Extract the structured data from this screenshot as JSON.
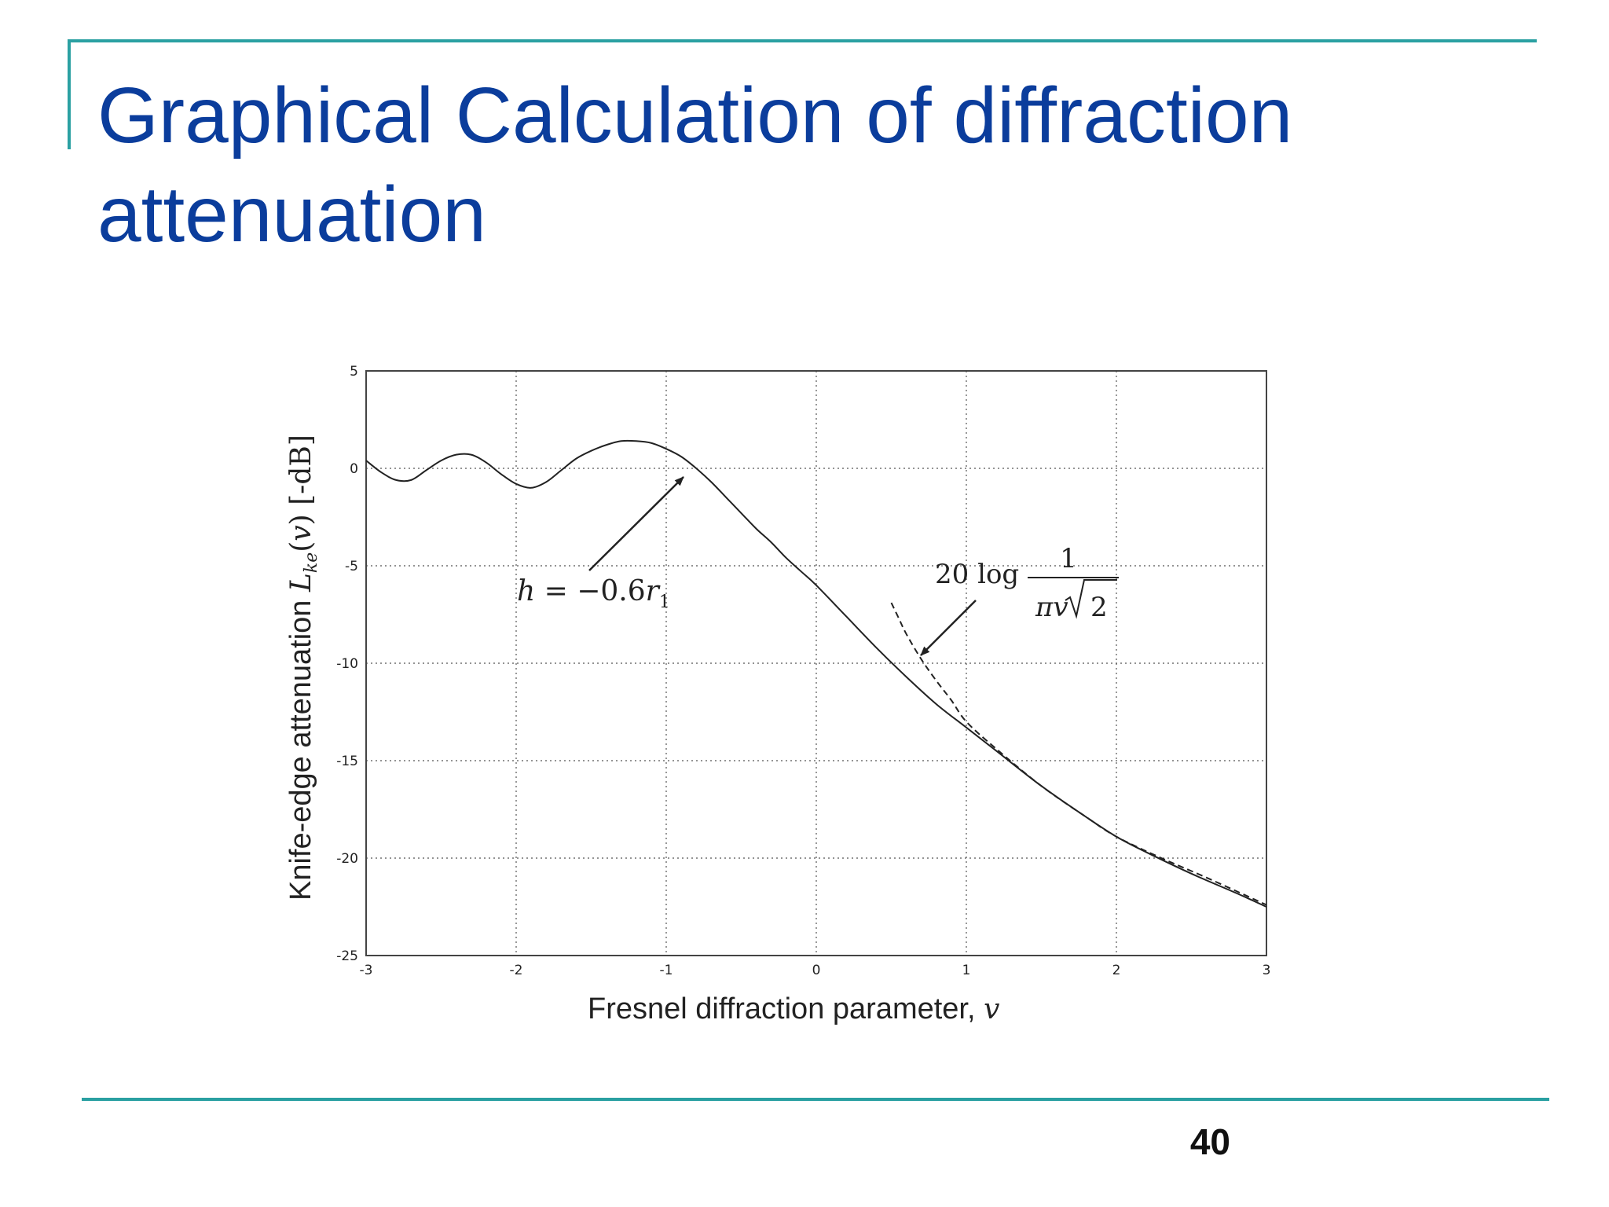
{
  "slide": {
    "title": "Graphical Calculation of diffraction attenuation",
    "page_number": "40"
  },
  "colors": {
    "title": "#0b3d9c",
    "rule": "#2aa0a2",
    "curve": "#222222",
    "grid": "#555555"
  },
  "chart_data": {
    "type": "line",
    "title": "",
    "xlabel": "Fresnel diffraction parameter, v",
    "ylabel": "Knife-edge attenuation L_ke(v) [-dB]",
    "xlim": [
      -3,
      3
    ],
    "ylim": [
      -25,
      5
    ],
    "xticks": [
      "-3",
      "-2",
      "-1",
      "0",
      "1",
      "2",
      "3"
    ],
    "yticks": [
      "5",
      "0",
      "-5",
      "-10",
      "-15",
      "-20",
      "-25"
    ],
    "grid": true,
    "series": [
      {
        "style": "solid",
        "x": [
          -3,
          -2.9,
          -2.8,
          -2.7,
          -2.6,
          -2.5,
          -2.4,
          -2.3,
          -2.2,
          -2.1,
          -2.0,
          -1.9,
          -1.8,
          -1.7,
          -1.6,
          -1.5,
          -1.4,
          -1.3,
          -1.2,
          -1.1,
          -1.0,
          -0.9,
          -0.8,
          -0.7,
          -0.6,
          -0.5,
          -0.4,
          -0.3,
          -0.2,
          -0.1,
          0.0,
          0.2,
          0.4,
          0.6,
          0.8,
          1.0,
          1.2,
          1.5,
          1.8,
          2.0,
          2.2,
          2.5,
          2.8,
          3.0
        ],
        "y": [
          0.4,
          -0.2,
          -0.6,
          -0.6,
          -0.1,
          0.4,
          0.7,
          0.7,
          0.3,
          -0.3,
          -0.8,
          -1.0,
          -0.7,
          -0.1,
          0.5,
          0.9,
          1.2,
          1.4,
          1.4,
          1.3,
          1.0,
          0.6,
          0.0,
          -0.7,
          -1.5,
          -2.3,
          -3.1,
          -3.8,
          -4.6,
          -5.3,
          -6.0,
          -7.6,
          -9.2,
          -10.7,
          -12.1,
          -13.3,
          -14.5,
          -16.3,
          -17.9,
          -18.9,
          -19.7,
          -20.8,
          -21.8,
          -22.5
        ]
      },
      {
        "style": "dashed",
        "x": [
          0.5,
          0.55,
          0.6,
          0.7,
          0.8,
          0.9,
          1.0,
          1.2,
          1.5,
          1.8,
          2.0,
          2.3,
          2.6,
          3.0
        ],
        "y": [
          -6.9,
          -7.7,
          -8.5,
          -9.8,
          -10.9,
          -11.9,
          -13.0,
          -14.4,
          -16.3,
          -17.9,
          -18.9,
          -20.0,
          -21.0,
          -22.4
        ]
      }
    ],
    "annotations": [
      {
        "text": "h = −0.6r",
        "subscript": "1",
        "arrow_to": [
          -0.85,
          -0.6
        ]
      },
      {
        "text": "20 log",
        "numerator": "1",
        "denominator": "πv√2",
        "arrow_to": [
          0.7,
          -9.9
        ]
      }
    ]
  }
}
